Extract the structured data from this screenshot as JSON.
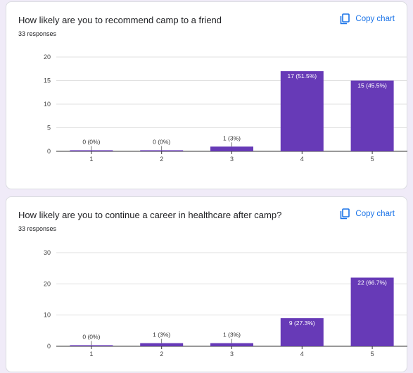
{
  "copy_chart_label": "Copy chart",
  "chart_data": [
    {
      "type": "bar",
      "title": "How likely are you to recommend camp to a friend",
      "subtitle": "33 responses",
      "categories": [
        "1",
        "2",
        "3",
        "4",
        "5"
      ],
      "values": [
        0,
        0,
        1,
        17,
        15
      ],
      "data_labels": [
        "0 (0%)",
        "0 (0%)",
        "1 (3%)",
        "17 (51.5%)",
        "15 (45.5%)"
      ],
      "yticks": [
        0,
        5,
        10,
        15,
        20
      ],
      "ylim": [
        0,
        20
      ],
      "grid": true,
      "bar_color": "#673ab7"
    },
    {
      "type": "bar",
      "title": "How likely are you to continue a career in healthcare after camp?",
      "subtitle": "33 responses",
      "categories": [
        "1",
        "2",
        "3",
        "4",
        "5"
      ],
      "values": [
        0,
        1,
        1,
        9,
        22
      ],
      "data_labels": [
        "0 (0%)",
        "1 (3%)",
        "1 (3%)",
        "9 (27.3%)",
        "22 (66.7%)"
      ],
      "yticks": [
        0,
        10,
        20,
        30
      ],
      "ylim": [
        0,
        30
      ],
      "grid": true,
      "bar_color": "#673ab7"
    }
  ]
}
